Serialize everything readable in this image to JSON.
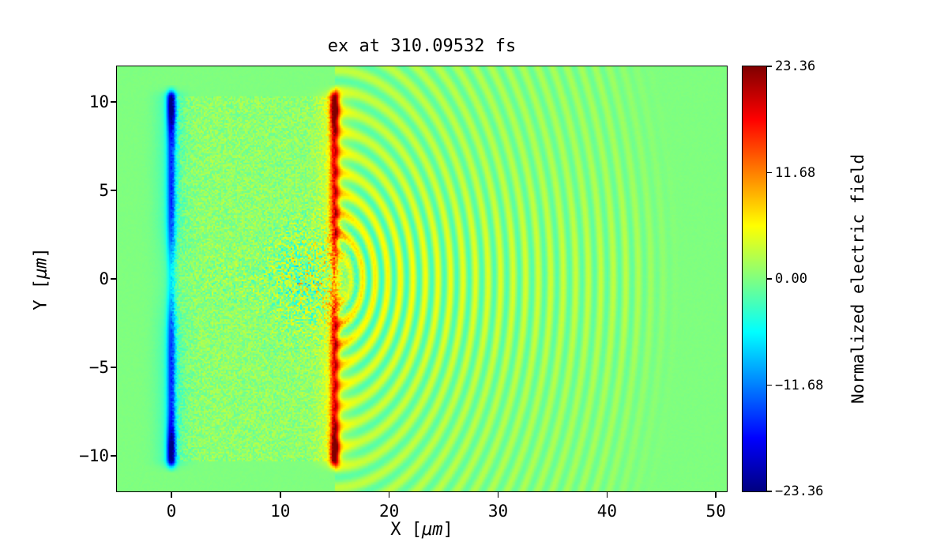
{
  "chart_data": {
    "type": "heatmap",
    "title": "ex at 310.09532 fs",
    "xlabel": "X [μm]",
    "ylabel": "Y [μm]",
    "xlim": [
      -5,
      51
    ],
    "ylim": [
      -12,
      12
    ],
    "x_ticks": [
      0,
      10,
      20,
      30,
      40,
      50
    ],
    "x_tick_labels": [
      "0",
      "10",
      "20",
      "30",
      "40",
      "50"
    ],
    "y_ticks": [
      10,
      5,
      0,
      -5,
      -10
    ],
    "y_tick_labels": [
      "10",
      "5",
      "0",
      "−5",
      "−10"
    ],
    "colormap": "jet",
    "grid": false,
    "legend": false,
    "colorbar": {
      "label": "Normalized electric field",
      "ticks": [
        23.36,
        11.68,
        0.0,
        -11.68,
        -23.36
      ],
      "tick_labels": [
        "23.36",
        "11.68",
        "0.00",
        "−11.68",
        "−23.36"
      ],
      "vmin": -23.36,
      "vmax": 23.36,
      "position": "right"
    },
    "field_features": {
      "background_value": 0,
      "plasma_slab": {
        "x_range": [
          0,
          15
        ],
        "y_range": [
          -10.3,
          10.3
        ],
        "noise_amplitude": 2.2,
        "tint": 0.7
      },
      "left_sheath": {
        "x": 0,
        "half_height": 10.2,
        "core_value": -13,
        "tip_value": -23,
        "glow_value": -3.2,
        "core_sigma": 0.28,
        "glow_sigma": 1.0,
        "axis_gap_sigma": 1.6,
        "axis_gap_depth": 0.55
      },
      "right_sheath": {
        "x": 15,
        "half_height": 10.2,
        "core_value": 14,
        "tip_value": 23,
        "glow_value": 3.8,
        "core_sigma": 0.3,
        "glow_sigma": 1.0,
        "axis_gap_sigma": 1.3,
        "axis_gap_depth": 0.5
      },
      "laser_channel": {
        "x_range": [
          1,
          15
        ],
        "y_sigma": 1.3,
        "noise_amplitude": 2.6
      },
      "focus_blob": {
        "center": [
          12.3,
          0
        ],
        "sigma": 2.4,
        "noise_amplitude": 8
      },
      "wavefronts": {
        "center": [
          15,
          0
        ],
        "wavelength": 1.15,
        "amplitude": 3.6,
        "positive_bias": 0.3,
        "r_min": 0.7,
        "r_max": 32,
        "decay_length": 28,
        "axis_boost": 0.6,
        "axis_boost_sigma": 3.5
      }
    },
    "noise_seed": 1337
  },
  "labels": {
    "x_pre": "X [",
    "x_unit": "μm",
    "x_post": "]",
    "y_pre": "Y [",
    "y_unit": "μm",
    "y_post": "]"
  }
}
